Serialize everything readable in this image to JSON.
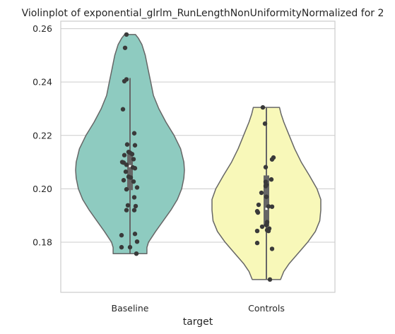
{
  "chart_data": {
    "type": "violin",
    "title": "Violinplot of exponential_glrlm_RunLengthNonUniformityNormalized for 2",
    "xlabel": "target",
    "ylabel": "",
    "ylim": [
      0.1612,
      0.2628
    ],
    "y_ticks": [
      "0.18",
      "0.20",
      "0.22",
      "0.24",
      "0.26"
    ],
    "y_tick_values": [
      0.18,
      0.2,
      0.22,
      0.24,
      0.26
    ],
    "grid": "horizontal",
    "categories": [
      "Baseline",
      "Controls"
    ],
    "colors": {
      "Baseline": "#8ecbc0",
      "Controls": "#f8f8b9",
      "outline": "#666666",
      "points": "#3a3a3a",
      "grid": "#cccccc"
    },
    "series": [
      {
        "category": "Baseline",
        "min": 0.1755,
        "q1": 0.1995,
        "median": 0.2085,
        "q3": 0.213,
        "max": 0.2415,
        "points": [
          [
            -0.05,
            0.2578
          ],
          [
            -0.07,
            0.2528
          ],
          [
            -0.05,
            0.241
          ],
          [
            -0.08,
            0.2403
          ],
          [
            -0.1,
            0.2298
          ],
          [
            0.06,
            0.2208
          ],
          [
            -0.04,
            0.2166
          ],
          [
            0.07,
            0.2163
          ],
          [
            -0.02,
            0.2138
          ],
          [
            0.0,
            0.2135
          ],
          [
            0.03,
            0.213
          ],
          [
            -0.08,
            0.2126
          ],
          [
            0.05,
            0.2111
          ],
          [
            -0.11,
            0.21
          ],
          [
            -0.09,
            0.2098
          ],
          [
            -0.05,
            0.209
          ],
          [
            0.04,
            0.208
          ],
          [
            0.07,
            0.2077
          ],
          [
            -0.06,
            0.2064
          ],
          [
            -0.02,
            0.2045
          ],
          [
            0.01,
            0.2042
          ],
          [
            -0.09,
            0.2032
          ],
          [
            0.05,
            0.2027
          ],
          [
            0.1,
            0.2005
          ],
          [
            -0.05,
            0.1998
          ],
          [
            0.06,
            0.1968
          ],
          [
            -0.03,
            0.1938
          ],
          [
            0.08,
            0.1935
          ],
          [
            -0.05,
            0.192
          ],
          [
            0.06,
            0.192
          ],
          [
            -0.12,
            0.1826
          ],
          [
            0.07,
            0.1831
          ],
          [
            0.1,
            0.1802
          ],
          [
            -0.12,
            0.1781
          ],
          [
            0.0,
            0.1781
          ],
          [
            0.09,
            0.1757
          ]
        ],
        "density": [
          [
            0.2578,
            0.1
          ],
          [
            0.2565,
            0.15
          ],
          [
            0.254,
            0.22
          ],
          [
            0.25,
            0.28
          ],
          [
            0.245,
            0.33
          ],
          [
            0.24,
            0.38
          ],
          [
            0.235,
            0.43
          ],
          [
            0.23,
            0.53
          ],
          [
            0.225,
            0.66
          ],
          [
            0.22,
            0.81
          ],
          [
            0.215,
            0.93
          ],
          [
            0.21,
            0.99
          ],
          [
            0.207,
            1.0
          ],
          [
            0.204,
            0.99
          ],
          [
            0.2,
            0.95
          ],
          [
            0.196,
            0.87
          ],
          [
            0.192,
            0.75
          ],
          [
            0.188,
            0.61
          ],
          [
            0.184,
            0.47
          ],
          [
            0.18,
            0.34
          ],
          [
            0.178,
            0.31
          ],
          [
            0.1757,
            0.31
          ]
        ]
      },
      {
        "category": "Controls",
        "min": 0.166,
        "q1": 0.186,
        "median": 0.1925,
        "q3": 0.205,
        "max": 0.2305,
        "points": [
          [
            -0.05,
            0.2305
          ],
          [
            -0.02,
            0.2244
          ],
          [
            0.1,
            0.2117
          ],
          [
            0.08,
            0.211
          ],
          [
            -0.01,
            0.2081
          ],
          [
            0.07,
            0.2035
          ],
          [
            -0.01,
            0.2026
          ],
          [
            0.0,
            0.2015
          ],
          [
            -0.01,
            0.201
          ],
          [
            -0.07,
            0.1985
          ],
          [
            0.0,
            0.197
          ],
          [
            -0.11,
            0.194
          ],
          [
            0.03,
            0.1934
          ],
          [
            0.08,
            0.1933
          ],
          [
            -0.13,
            0.1916
          ],
          [
            -0.12,
            0.1911
          ],
          [
            0.01,
            0.1875
          ],
          [
            0.0,
            0.1864
          ],
          [
            -0.06,
            0.1858
          ],
          [
            0.04,
            0.1851
          ],
          [
            0.03,
            0.1842
          ],
          [
            0.01,
            0.1845
          ],
          [
            -0.13,
            0.1842
          ],
          [
            -0.13,
            0.1797
          ],
          [
            0.08,
            0.1775
          ],
          [
            0.05,
            0.166
          ]
        ],
        "density": [
          [
            0.2305,
            0.24
          ],
          [
            0.228,
            0.27
          ],
          [
            0.225,
            0.32
          ],
          [
            0.22,
            0.42
          ],
          [
            0.215,
            0.52
          ],
          [
            0.21,
            0.64
          ],
          [
            0.205,
            0.79
          ],
          [
            0.2,
            0.93
          ],
          [
            0.196,
            1.0
          ],
          [
            0.192,
            1.0
          ],
          [
            0.188,
            0.98
          ],
          [
            0.184,
            0.9
          ],
          [
            0.18,
            0.76
          ],
          [
            0.176,
            0.59
          ],
          [
            0.172,
            0.42
          ],
          [
            0.169,
            0.32
          ],
          [
            0.166,
            0.26
          ]
        ]
      }
    ]
  }
}
